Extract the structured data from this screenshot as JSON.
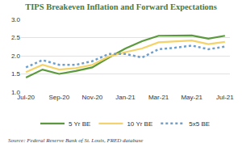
{
  "chart_data": {
    "type": "line",
    "title": "TIPS Breakeven Inflation and Forward Expectations",
    "source": "Source: Federal Reserve Bank of St. Louis, FRED database",
    "categories": [
      "Jul-20",
      null,
      "Sep-20",
      null,
      "Nov-20",
      null,
      "Jan-21",
      null,
      "Mar-21",
      null,
      "May-21",
      null,
      "Jul-21"
    ],
    "series": [
      {
        "name": "5 Yr BE",
        "color": "#5b9a3c",
        "line_style": "solid",
        "values": [
          1.4,
          1.62,
          1.5,
          1.58,
          1.68,
          1.95,
          2.2,
          2.4,
          2.55,
          2.55,
          2.56,
          2.47,
          2.55
        ]
      },
      {
        "name": "10 Yr BE",
        "color": "#f3d36a",
        "line_style": "solid",
        "values": [
          1.55,
          1.75,
          1.62,
          1.66,
          1.75,
          1.98,
          2.1,
          2.2,
          2.37,
          2.4,
          2.42,
          2.32,
          2.38
        ]
      },
      {
        "name": "5x5 BE",
        "color": "#6f9fcb",
        "line_style": "dotted",
        "values": [
          1.68,
          1.88,
          1.75,
          1.75,
          1.85,
          2.05,
          2.05,
          1.95,
          2.18,
          2.22,
          2.28,
          2.18,
          2.25
        ]
      }
    ],
    "ylim": [
      1.0,
      3.0
    ],
    "yticks": [
      {
        "value": 1.0,
        "label": "1.0"
      },
      {
        "value": 1.5,
        "label": "1.5"
      },
      {
        "value": 2.0,
        "label": "2.0"
      },
      {
        "value": 2.5,
        "label": "2.5"
      },
      {
        "value": 3.0,
        "label": "3.0"
      }
    ],
    "grid": true,
    "legend": "bottom"
  }
}
